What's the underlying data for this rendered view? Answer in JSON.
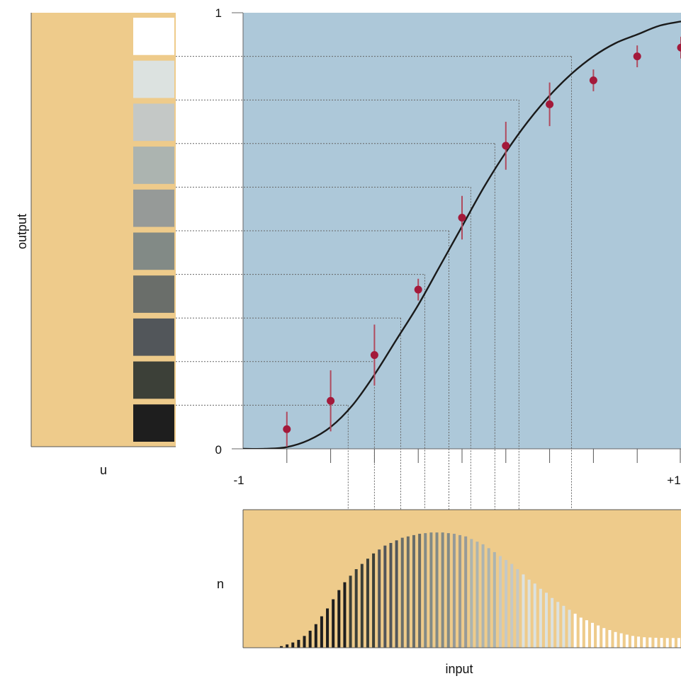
{
  "chart_data": {
    "type": "line",
    "main": {
      "xlabel": "input",
      "ylabel": "output",
      "x_ticks_major": [
        "-1",
        "+1"
      ],
      "y_ticks": [
        "0",
        "1"
      ],
      "xlim": [
        -1,
        1
      ],
      "ylim": [
        0,
        1
      ],
      "curve": {
        "x": [
          -1.0,
          -0.9,
          -0.8,
          -0.7,
          -0.6,
          -0.5,
          -0.4,
          -0.3,
          -0.2,
          -0.1,
          0.0,
          0.1,
          0.2,
          0.3,
          0.4,
          0.5,
          0.6,
          0.7,
          0.8,
          0.9,
          1.0
        ],
        "y": [
          0.0,
          0.0,
          0.004,
          0.02,
          0.05,
          0.1,
          0.17,
          0.25,
          0.33,
          0.42,
          0.51,
          0.6,
          0.68,
          0.75,
          0.81,
          0.86,
          0.9,
          0.93,
          0.95,
          0.97,
          0.98
        ]
      },
      "points": {
        "x": [
          -0.8,
          -0.6,
          -0.4,
          -0.2,
          0.0,
          0.2,
          0.4,
          0.6,
          0.8,
          1.0
        ],
        "y": [
          0.045,
          0.11,
          0.215,
          0.365,
          0.53,
          0.695,
          0.79,
          0.845,
          0.9,
          0.92
        ],
        "err": [
          0.04,
          0.07,
          0.07,
          0.025,
          0.05,
          0.055,
          0.05,
          0.025,
          0.025,
          0.025
        ]
      },
      "x_minor_ticks": [
        -0.8,
        -0.6,
        -0.4,
        -0.2,
        0.0,
        0.2,
        0.4,
        0.6,
        0.8
      ],
      "level_inputs": [
        -0.52,
        -0.4,
        -0.28,
        -0.17,
        -0.06,
        0.04,
        0.15,
        0.26,
        0.5
      ],
      "level_outputs": [
        0.1,
        0.2,
        0.3,
        0.4,
        0.5,
        0.6,
        0.7,
        0.8,
        0.9
      ]
    },
    "left_panel": {
      "label": "n",
      "levels": 10,
      "swatch_colors": [
        "#1e1e1e",
        "#3c4038",
        "#52565a",
        "#6a6e6a",
        "#828a86",
        "#969a98",
        "#acb4b0",
        "#c4c8c6",
        "#dce2e0",
        "#ffffff"
      ]
    },
    "bottom_panel": {
      "ylabel": "n",
      "xlabel": "input",
      "bars": [
        0.012,
        0.025,
        0.04,
        0.06,
        0.09,
        0.13,
        0.18,
        0.24,
        0.3,
        0.37,
        0.44,
        0.5,
        0.55,
        0.6,
        0.64,
        0.68,
        0.72,
        0.75,
        0.78,
        0.8,
        0.82,
        0.84,
        0.85,
        0.86,
        0.87,
        0.875,
        0.88,
        0.88,
        0.88,
        0.875,
        0.87,
        0.86,
        0.85,
        0.83,
        0.81,
        0.79,
        0.76,
        0.73,
        0.7,
        0.67,
        0.64,
        0.6,
        0.56,
        0.52,
        0.49,
        0.45,
        0.42,
        0.38,
        0.35,
        0.32,
        0.29,
        0.26,
        0.23,
        0.21,
        0.19,
        0.17,
        0.15,
        0.135,
        0.12,
        0.11,
        0.1,
        0.09,
        0.085,
        0.08,
        0.078,
        0.076,
        0.075,
        0.074,
        0.074,
        0.074
      ]
    },
    "colors": {
      "main_bg": "#adc8d9",
      "panel_bg": "#eecb8b",
      "curve": "#1a1a1a",
      "points": "#a3193a",
      "errorbars": "#b04a5e",
      "guides": "#666666"
    }
  }
}
